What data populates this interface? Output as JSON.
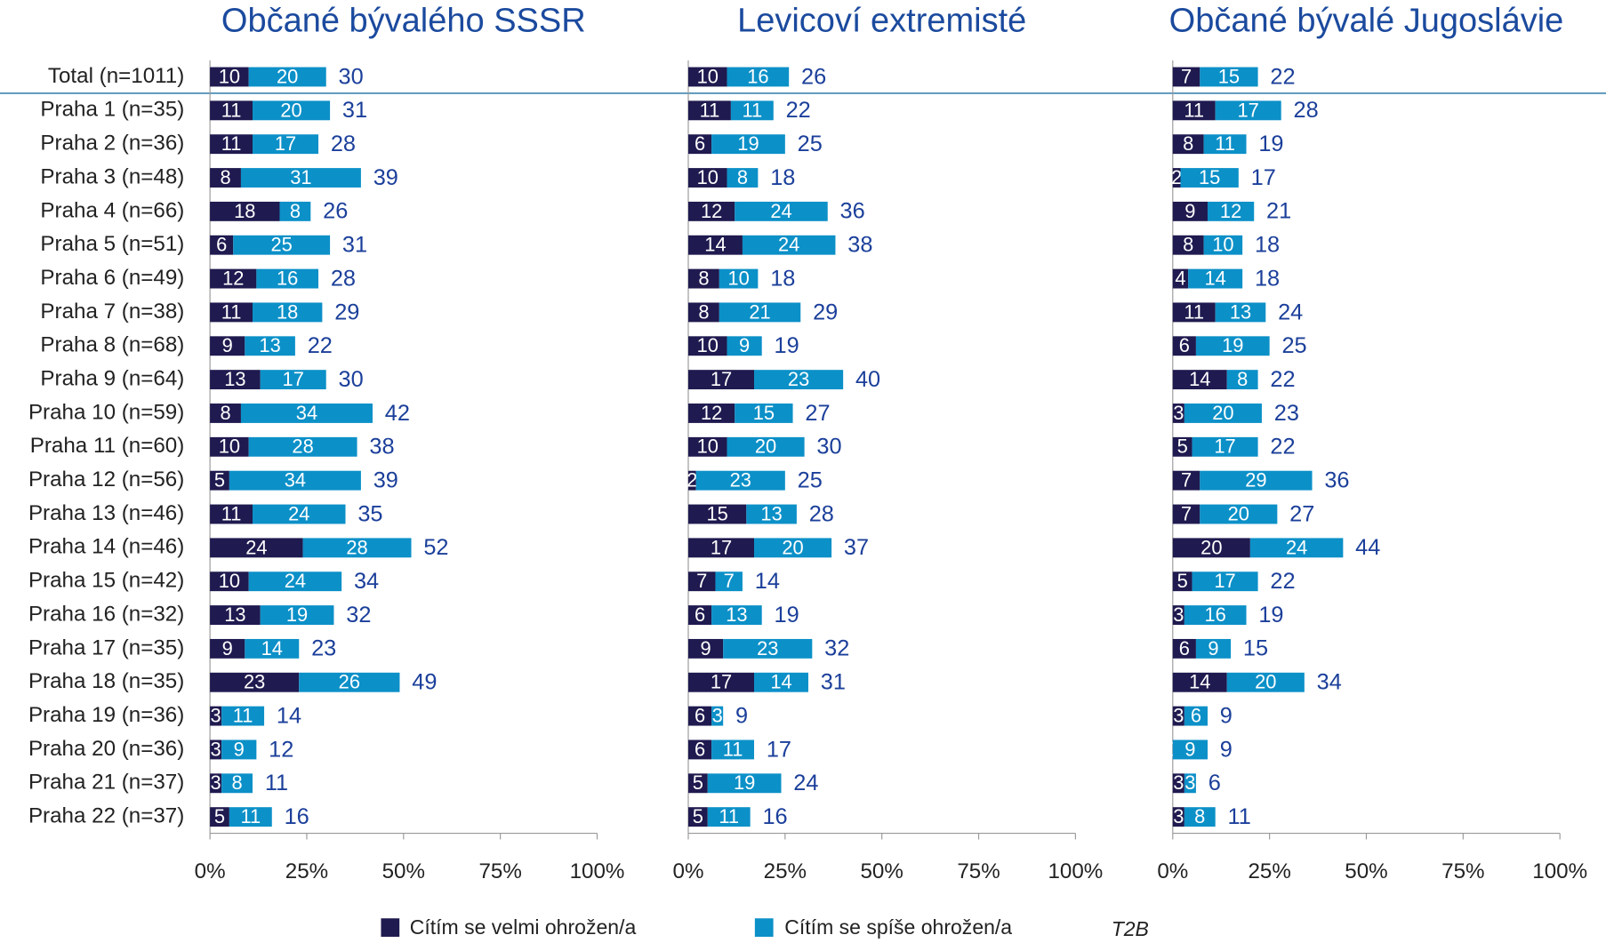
{
  "chart_data": [
    {
      "type": "bar",
      "orientation": "horizontal",
      "stacked": true,
      "title": "Občané bývalého SSSR",
      "categories": [
        "Total (n=1011)",
        "Praha 1 (n=35)",
        "Praha 2 (n=36)",
        "Praha 3 (n=48)",
        "Praha 4 (n=66)",
        "Praha 5 (n=51)",
        "Praha 6 (n=49)",
        "Praha 7 (n=38)",
        "Praha 8 (n=68)",
        "Praha 9 (n=64)",
        "Praha 10 (n=59)",
        "Praha 11 (n=60)",
        "Praha 12 (n=56)",
        "Praha 13 (n=46)",
        "Praha 14 (n=46)",
        "Praha 15 (n=42)",
        "Praha 16 (n=32)",
        "Praha 17 (n=35)",
        "Praha 18 (n=35)",
        "Praha 19 (n=36)",
        "Praha 20 (n=36)",
        "Praha 21 (n=37)",
        "Praha 22 (n=37)"
      ],
      "series": [
        {
          "name": "Cítím se velmi ohrožen/a",
          "color": "#1f1a4f",
          "values": [
            10,
            11,
            11,
            8,
            18,
            6,
            12,
            11,
            9,
            13,
            8,
            10,
            5,
            11,
            24,
            10,
            13,
            9,
            23,
            3,
            3,
            3,
            5
          ]
        },
        {
          "name": "Cítím se spíše ohrožen/a",
          "color": "#0c90c8",
          "values": [
            20,
            20,
            17,
            31,
            8,
            25,
            16,
            18,
            13,
            17,
            34,
            28,
            34,
            24,
            28,
            24,
            19,
            14,
            26,
            11,
            9,
            8,
            11
          ]
        }
      ],
      "totals_name": "T2B",
      "totals": [
        30,
        31,
        28,
        39,
        26,
        31,
        28,
        29,
        22,
        30,
        42,
        38,
        39,
        35,
        52,
        34,
        32,
        23,
        49,
        14,
        12,
        11,
        16
      ],
      "xlim": [
        0,
        100
      ],
      "xticks": [
        {
          "value": 0,
          "label": "0%"
        },
        {
          "value": 25,
          "label": "25%"
        },
        {
          "value": 50,
          "label": "50%"
        },
        {
          "value": 75,
          "label": "75%"
        },
        {
          "value": 100,
          "label": "100%"
        }
      ]
    },
    {
      "type": "bar",
      "orientation": "horizontal",
      "stacked": true,
      "title": "Levicoví extremisté",
      "series": [
        {
          "color": "#1f1a4f",
          "values": [
            10,
            11,
            6,
            10,
            12,
            14,
            8,
            8,
            10,
            17,
            12,
            10,
            2,
            15,
            17,
            7,
            6,
            9,
            17,
            6,
            6,
            5,
            5
          ]
        },
        {
          "color": "#0c90c8",
          "values": [
            16,
            11,
            19,
            8,
            24,
            24,
            10,
            21,
            9,
            23,
            15,
            20,
            23,
            13,
            20,
            7,
            13,
            23,
            14,
            3,
            11,
            19,
            11
          ]
        }
      ],
      "totals": [
        26,
        22,
        25,
        18,
        36,
        38,
        18,
        29,
        19,
        40,
        27,
        30,
        25,
        28,
        37,
        14,
        19,
        32,
        31,
        9,
        17,
        24,
        16
      ],
      "xlim": [
        0,
        100
      ],
      "xticks": [
        {
          "value": 0,
          "label": "0%"
        },
        {
          "value": 25,
          "label": "25%"
        },
        {
          "value": 50,
          "label": "50%"
        },
        {
          "value": 75,
          "label": "75%"
        },
        {
          "value": 100,
          "label": "100%"
        }
      ]
    },
    {
      "type": "bar",
      "orientation": "horizontal",
      "stacked": true,
      "title": "Občané bývalé Jugoslávie",
      "series": [
        {
          "color": "#1f1a4f",
          "values": [
            7,
            11,
            8,
            2,
            9,
            8,
            4,
            11,
            6,
            14,
            3,
            5,
            7,
            7,
            20,
            5,
            3,
            6,
            14,
            3,
            0,
            3,
            3
          ]
        },
        {
          "color": "#0c90c8",
          "values": [
            15,
            17,
            11,
            15,
            12,
            10,
            14,
            13,
            19,
            8,
            20,
            17,
            29,
            20,
            24,
            17,
            16,
            9,
            20,
            6,
            9,
            3,
            8
          ]
        }
      ],
      "totals": [
        22,
        28,
        19,
        17,
        21,
        18,
        18,
        24,
        25,
        22,
        23,
        22,
        36,
        27,
        44,
        22,
        19,
        15,
        34,
        9,
        9,
        6,
        11
      ],
      "xlim": [
        0,
        100
      ],
      "xticks": [
        {
          "value": 0,
          "label": "0%"
        },
        {
          "value": 25,
          "label": "25%"
        },
        {
          "value": 50,
          "label": "50%"
        },
        {
          "value": 75,
          "label": "75%"
        },
        {
          "value": 100,
          "label": "100%"
        }
      ]
    }
  ]
}
